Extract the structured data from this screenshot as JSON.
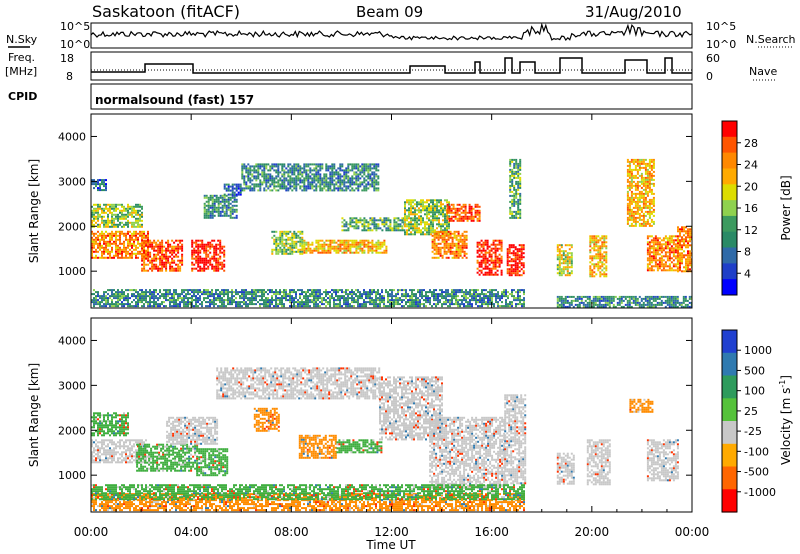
{
  "header": {
    "radar": "Saskatoon (fitACF)",
    "beam": "Beam 09",
    "date": "31/Aug/2010"
  },
  "noise_panel": {
    "left_label": "N.Sky",
    "right_label": "N.Search",
    "tick_top": "10^5",
    "tick_bottom": "10^0"
  },
  "freq_panel": {
    "left_label_1": "Freq.",
    "left_label_2": "[MHz]",
    "right_label": "Nave",
    "left_ticks": [
      "18",
      "8"
    ],
    "right_ticks": [
      "60",
      "0"
    ]
  },
  "cpid": {
    "label": "CPID",
    "value": "normalsound (fast) 157"
  },
  "power_panel": {
    "ylabel": "Slant Range [km]",
    "colorbar_label": "Power [dB]",
    "colorbar_ticks": [
      "28",
      "24",
      "20",
      "16",
      "12",
      "8",
      "4"
    ],
    "colorbar_colors": [
      "#ff0000",
      "#ff5500",
      "#ff8800",
      "#ffaa00",
      "#dddd00",
      "#8fd14f",
      "#3c9a5f",
      "#2a8a66",
      "#2f6aa8",
      "#1f3fc8",
      "#0000ff"
    ],
    "yticks": [
      "4000",
      "3000",
      "2000",
      "1000"
    ]
  },
  "velocity_panel": {
    "ylabel": "Slant Range [km]",
    "colorbar_label": "Velocity [m s",
    "colorbar_label_sup": "-1",
    "colorbar_label_end": "]",
    "colorbar_ticks": [
      "1000",
      "500",
      "100",
      "25",
      "-25",
      "-100",
      "-500",
      "-1000"
    ],
    "colorbar_colors": [
      "#2040d0",
      "#2f7ab0",
      "#2e9b5c",
      "#55c23a",
      "#c8c8c8",
      "#ffaa00",
      "#ff6600",
      "#ff0000"
    ],
    "yticks": [
      "4000",
      "3000",
      "2000",
      "1000"
    ]
  },
  "time_axis": {
    "ticks": [
      "00:00",
      "04:00",
      "08:00",
      "12:00",
      "16:00",
      "20:00",
      "00:00"
    ],
    "label": "Time UT"
  },
  "chart_data": {
    "type": "heatmap",
    "title": "Saskatoon (fitACF) Beam 09 31/Aug/2010",
    "xlabel": "Time UT",
    "ylabel": "Slant Range [km]",
    "xlim_hours": [
      0,
      24
    ],
    "ylim_km": [
      180,
      4500
    ],
    "colors": {
      "power": [
        "#0000ff",
        "#1f3fc8",
        "#2f6aa8",
        "#2a8a66",
        "#3c9a5f",
        "#8fd14f",
        "#dddd00",
        "#ffaa00",
        "#ff8800",
        "#ff5500",
        "#ff0000"
      ],
      "velocity_gray": "#c8c8c8",
      "velocity_green": "#3fae3f",
      "velocity_orange": "#ff8c00"
    },
    "power_regions": [
      {
        "t": [
          0.0,
          0.6
        ],
        "r": [
          2800,
          3050
        ],
        "level": 2
      },
      {
        "t": [
          0.0,
          2.0
        ],
        "r": [
          2000,
          2500
        ],
        "level": 5
      },
      {
        "t": [
          0.0,
          2.3
        ],
        "r": [
          1300,
          1900
        ],
        "level": 8
      },
      {
        "t": [
          2.0,
          3.6
        ],
        "r": [
          1000,
          1700
        ],
        "level": 9
      },
      {
        "t": [
          4.0,
          5.3
        ],
        "r": [
          1000,
          1700
        ],
        "level": 10
      },
      {
        "t": [
          4.5,
          5.8
        ],
        "r": [
          2200,
          2700
        ],
        "level": 3
      },
      {
        "t": [
          5.3,
          6.0
        ],
        "r": [
          2700,
          2950
        ],
        "level": 2
      },
      {
        "t": [
          6.0,
          11.5
        ],
        "r": [
          2800,
          3400
        ],
        "level": 3
      },
      {
        "t": [
          7.2,
          8.4
        ],
        "r": [
          1400,
          1900
        ],
        "level": 5
      },
      {
        "t": [
          8.4,
          11.8
        ],
        "r": [
          1400,
          1700
        ],
        "level": 7
      },
      {
        "t": [
          10.0,
          12.5
        ],
        "r": [
          1900,
          2200
        ],
        "level": 4
      },
      {
        "t": [
          12.5,
          14.3
        ],
        "r": [
          1800,
          2600
        ],
        "level": 5
      },
      {
        "t": [
          13.6,
          15.0
        ],
        "r": [
          1300,
          1900
        ],
        "level": 8
      },
      {
        "t": [
          14.2,
          15.5
        ],
        "r": [
          2100,
          2500
        ],
        "level": 9
      },
      {
        "t": [
          15.4,
          16.4
        ],
        "r": [
          900,
          1700
        ],
        "level": 10
      },
      {
        "t": [
          16.6,
          17.3
        ],
        "r": [
          900,
          1600
        ],
        "level": 10
      },
      {
        "t": [
          16.7,
          17.1
        ],
        "r": [
          2200,
          3500
        ],
        "level": 4
      },
      {
        "t": [
          18.6,
          19.2
        ],
        "r": [
          900,
          1600
        ],
        "level": 6
      },
      {
        "t": [
          19.9,
          20.6
        ],
        "r": [
          900,
          1800
        ],
        "level": 7
      },
      {
        "t": [
          21.4,
          22.5
        ],
        "r": [
          2000,
          3500
        ],
        "level": 7
      },
      {
        "t": [
          22.2,
          23.5
        ],
        "r": [
          1000,
          1800
        ],
        "level": 8
      },
      {
        "t": [
          23.4,
          24.0
        ],
        "r": [
          1000,
          2000
        ],
        "level": 8
      },
      {
        "t": [
          0.0,
          17.3
        ],
        "r": [
          220,
          600
        ],
        "level": 3
      },
      {
        "t": [
          18.6,
          24.0
        ],
        "r": [
          220,
          450
        ],
        "level": 3
      }
    ],
    "velocity_regions": [
      {
        "t": [
          0.0,
          1.5
        ],
        "r": [
          1900,
          2400
        ],
        "c": "green"
      },
      {
        "t": [
          0.0,
          2.2
        ],
        "r": [
          1300,
          1800
        ],
        "c": "gray"
      },
      {
        "t": [
          1.8,
          4.2
        ],
        "r": [
          1100,
          1700
        ],
        "c": "green"
      },
      {
        "t": [
          4.2,
          5.4
        ],
        "r": [
          1000,
          1600
        ],
        "c": "green"
      },
      {
        "t": [
          3.0,
          5.0
        ],
        "r": [
          1700,
          2300
        ],
        "c": "gray"
      },
      {
        "t": [
          5.0,
          11.5
        ],
        "r": [
          2700,
          3400
        ],
        "c": "gray"
      },
      {
        "t": [
          6.5,
          7.5
        ],
        "r": [
          2000,
          2500
        ],
        "c": "orange"
      },
      {
        "t": [
          8.3,
          9.8
        ],
        "r": [
          1400,
          1900
        ],
        "c": "orange"
      },
      {
        "t": [
          9.8,
          11.6
        ],
        "r": [
          1500,
          1800
        ],
        "c": "green"
      },
      {
        "t": [
          11.5,
          14.0
        ],
        "r": [
          1800,
          3200
        ],
        "c": "gray"
      },
      {
        "t": [
          13.5,
          16.5
        ],
        "r": [
          700,
          2300
        ],
        "c": "gray"
      },
      {
        "t": [
          16.5,
          17.3
        ],
        "r": [
          800,
          2800
        ],
        "c": "gray"
      },
      {
        "t": [
          18.6,
          19.3
        ],
        "r": [
          800,
          1500
        ],
        "c": "gray"
      },
      {
        "t": [
          19.8,
          20.7
        ],
        "r": [
          800,
          1800
        ],
        "c": "gray"
      },
      {
        "t": [
          21.5,
          22.4
        ],
        "r": [
          2400,
          2700
        ],
        "c": "orange"
      },
      {
        "t": [
          22.2,
          23.4
        ],
        "r": [
          900,
          1800
        ],
        "c": "gray"
      },
      {
        "t": [
          0.0,
          17.3
        ],
        "r": [
          200,
          600
        ],
        "c": "orange"
      },
      {
        "t": [
          0.0,
          17.3
        ],
        "r": [
          450,
          800
        ],
        "c": "green"
      }
    ]
  }
}
